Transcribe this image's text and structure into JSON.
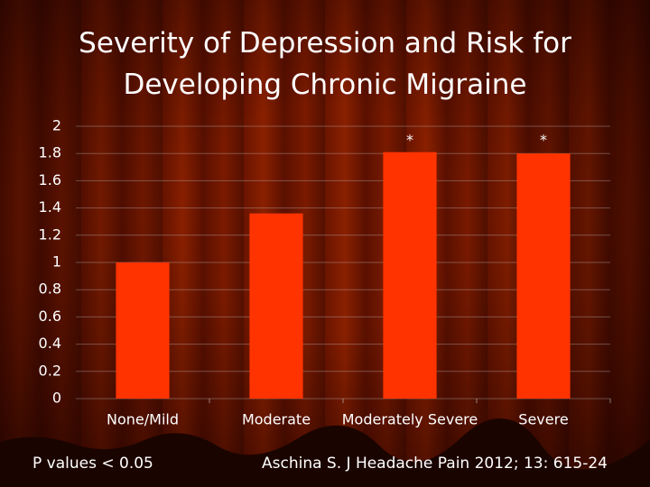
{
  "chart_data": {
    "type": "bar",
    "title": "Severity of Depression and Risk for Developing Chronic Migraine",
    "categories": [
      "None/Mild",
      "Moderate",
      "Moderately Severe",
      "Severe"
    ],
    "values": [
      1.0,
      1.36,
      1.81,
      1.8
    ],
    "color": "#ff3300",
    "annotations": [
      {
        "text": "*",
        "category": "Moderately Severe"
      },
      {
        "text": "*",
        "category": "Severe"
      }
    ],
    "ylim": [
      0,
      2
    ],
    "yticks": [
      0,
      0.2,
      0.4,
      0.6,
      0.8,
      1,
      1.2,
      1.4,
      1.6,
      1.8,
      2
    ],
    "grid": true
  },
  "footer": {
    "left": "P values < 0.05",
    "right": "Aschina S. J Headache Pain 2012; 13: 615-24"
  }
}
